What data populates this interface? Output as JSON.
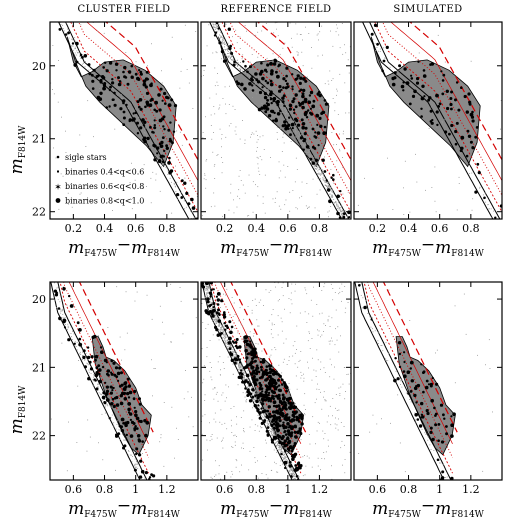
{
  "figure": {
    "column_titles": [
      "CLUSTER FIELD",
      "REFERENCE FIELD",
      "SIMULATED"
    ],
    "y_axis_label": {
      "main": "m",
      "sub": "F814W"
    },
    "x_axis_label": {
      "main1": "m",
      "sub1": "F475W",
      "minus": "−",
      "main2": "m",
      "sub2": "F814W"
    }
  },
  "colors": {
    "region_fill": "#8a8a8a",
    "isochrone": "#000000",
    "binary_sequence": "#d40000",
    "field_points": "#9a9a9a",
    "stars": "#000000"
  },
  "chart_data": [
    {
      "type": "scatter",
      "row": "top",
      "xlim": [
        0.05,
        1.0
      ],
      "ylim": [
        22.1,
        19.4
      ],
      "xticks": [
        0.2,
        0.4,
        0.6,
        0.8
      ],
      "yticks": [
        20,
        21,
        22
      ],
      "legend": {
        "placement": "bottom-left of first panel",
        "entries": [
          "sigle stars",
          "binaries 0.4<q<0.6",
          "binaries 0.6<q<0.8",
          "binaries 0.8<q<1.0"
        ]
      }
    },
    {
      "type": "scatter",
      "row": "bottom",
      "xlim": [
        0.45,
        1.4
      ],
      "ylim": [
        22.65,
        19.75
      ],
      "xticks": [
        0.6,
        0.8,
        1,
        1.2
      ],
      "yticks": [
        20,
        21,
        22
      ]
    }
  ]
}
